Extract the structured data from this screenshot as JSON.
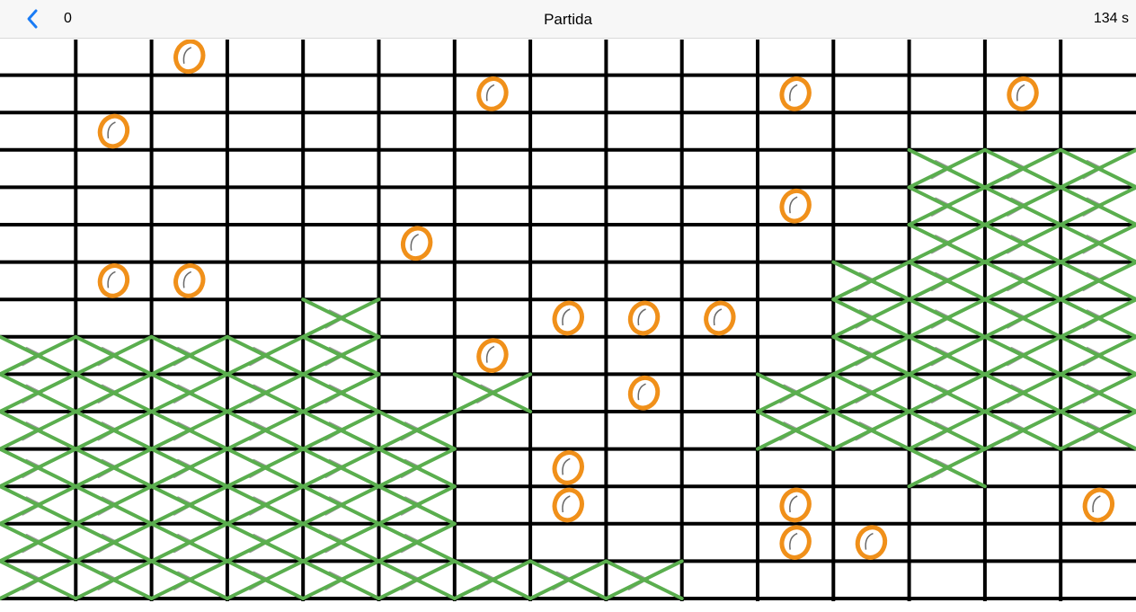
{
  "nav": {
    "back_icon": "chevron-left-icon",
    "score": "0",
    "title": "Partida",
    "timer": "134 s"
  },
  "colors": {
    "accent": "#1a7cf5",
    "grid": "#000000",
    "x_mark": "#5aae4e",
    "o_mark": "#f0901a"
  },
  "board": {
    "columns": 15,
    "rows": 15,
    "x_cells": [
      [
        3,
        12
      ],
      [
        3,
        13
      ],
      [
        3,
        14
      ],
      [
        4,
        12
      ],
      [
        4,
        13
      ],
      [
        4,
        14
      ],
      [
        5,
        12
      ],
      [
        5,
        13
      ],
      [
        5,
        14
      ],
      [
        6,
        11
      ],
      [
        6,
        12
      ],
      [
        6,
        13
      ],
      [
        6,
        14
      ],
      [
        7,
        4
      ],
      [
        7,
        11
      ],
      [
        7,
        12
      ],
      [
        7,
        13
      ],
      [
        7,
        14
      ],
      [
        8,
        0
      ],
      [
        8,
        1
      ],
      [
        8,
        2
      ],
      [
        8,
        3
      ],
      [
        8,
        4
      ],
      [
        8,
        11
      ],
      [
        8,
        12
      ],
      [
        8,
        13
      ],
      [
        8,
        14
      ],
      [
        9,
        0
      ],
      [
        9,
        1
      ],
      [
        9,
        2
      ],
      [
        9,
        3
      ],
      [
        9,
        4
      ],
      [
        9,
        6
      ],
      [
        9,
        10
      ],
      [
        9,
        11
      ],
      [
        9,
        12
      ],
      [
        9,
        13
      ],
      [
        9,
        14
      ],
      [
        10,
        0
      ],
      [
        10,
        1
      ],
      [
        10,
        2
      ],
      [
        10,
        3
      ],
      [
        10,
        4
      ],
      [
        10,
        5
      ],
      [
        10,
        10
      ],
      [
        10,
        11
      ],
      [
        10,
        12
      ],
      [
        10,
        13
      ],
      [
        10,
        14
      ],
      [
        11,
        0
      ],
      [
        11,
        1
      ],
      [
        11,
        2
      ],
      [
        11,
        3
      ],
      [
        11,
        4
      ],
      [
        11,
        5
      ],
      [
        11,
        12
      ],
      [
        12,
        0
      ],
      [
        12,
        1
      ],
      [
        12,
        2
      ],
      [
        12,
        3
      ],
      [
        12,
        4
      ],
      [
        12,
        5
      ],
      [
        13,
        0
      ],
      [
        13,
        1
      ],
      [
        13,
        2
      ],
      [
        13,
        3
      ],
      [
        13,
        4
      ],
      [
        13,
        5
      ],
      [
        14,
        0
      ],
      [
        14,
        1
      ],
      [
        14,
        2
      ],
      [
        14,
        3
      ],
      [
        14,
        4
      ],
      [
        14,
        5
      ],
      [
        14,
        6
      ],
      [
        14,
        7
      ],
      [
        14,
        8
      ]
    ],
    "o_cells": [
      [
        0,
        2
      ],
      [
        1,
        6
      ],
      [
        1,
        10
      ],
      [
        1,
        13
      ],
      [
        2,
        1
      ],
      [
        4,
        10
      ],
      [
        5,
        5
      ],
      [
        6,
        1
      ],
      [
        6,
        2
      ],
      [
        7,
        7
      ],
      [
        7,
        8
      ],
      [
        7,
        9
      ],
      [
        8,
        6
      ],
      [
        9,
        8
      ],
      [
        11,
        7
      ],
      [
        12,
        7
      ],
      [
        12,
        10
      ],
      [
        12,
        14
      ],
      [
        13,
        10
      ],
      [
        13,
        11
      ]
    ]
  }
}
